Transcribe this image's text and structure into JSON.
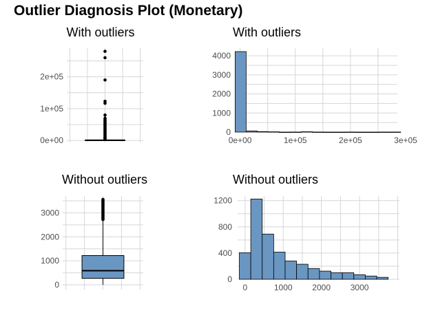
{
  "title": "Outlier Diagnosis Plot (Monetary)",
  "colors": {
    "fill": "#6a96c2",
    "stroke": "#000000",
    "grid": "#d6d6d6",
    "tick_text": "#4d4d4d"
  },
  "chart_data": [
    {
      "type": "box",
      "title": "With outliers",
      "ylim": [
        -6000,
        290000
      ],
      "yticks": [
        0,
        100000,
        200000
      ],
      "ytick_labels": [
        "0e+00",
        "1e+05",
        "2e+05"
      ],
      "grid": true,
      "box": {
        "min": 0,
        "q1": 300,
        "median": 650,
        "q3": 1650,
        "max": 3600
      },
      "outliers": [
        280000,
        260000,
        190000,
        123000,
        117000,
        80000,
        70000,
        65000,
        62000,
        58000,
        55000,
        52000,
        49000,
        46000,
        43000,
        40000,
        37000,
        34000,
        31000,
        28000,
        25000,
        22000,
        19000,
        16000,
        13000,
        10000,
        8000,
        6000,
        4500
      ]
    },
    {
      "type": "bar",
      "title": "With outliers",
      "xlim": [
        -7000,
        285000
      ],
      "ylim": [
        0,
        4400
      ],
      "xticks": [
        0,
        100000,
        200000,
        300000
      ],
      "xtick_labels": [
        "0e+00",
        "1e+05",
        "2e+05",
        "3e+05"
      ],
      "yticks": [
        0,
        1000,
        2000,
        3000,
        4000
      ],
      "ytick_labels": [
        "0",
        "1000",
        "2000",
        "3000",
        "4000"
      ],
      "grid": true,
      "bin_edges": [
        -9000,
        11000,
        31000,
        51000,
        71000,
        91000,
        111000,
        131000,
        151000,
        171000,
        191000,
        211000,
        231000,
        251000,
        271000,
        291000
      ],
      "counts": [
        4220,
        60,
        25,
        15,
        0,
        3,
        18,
        3,
        0,
        0,
        3,
        0,
        0,
        3,
        4
      ]
    },
    {
      "type": "box",
      "title": "Without outliers",
      "ylim": [
        -200,
        3700
      ],
      "yticks": [
        0,
        1000,
        2000,
        3000
      ],
      "ytick_labels": [
        "0",
        "1000",
        "2000",
        "3000"
      ],
      "grid": true,
      "box": {
        "min": 0,
        "q1": 270,
        "median": 590,
        "q3": 1220,
        "max": 2700
      },
      "outliers": [
        2720,
        2760,
        2800,
        2840,
        2880,
        2920,
        2960,
        3000,
        3040,
        3080,
        3120,
        3160,
        3200,
        3240,
        3280,
        3320,
        3360,
        3400,
        3440,
        3480,
        3520,
        3560
      ]
    },
    {
      "type": "bar",
      "title": "Without outliers",
      "xlim": [
        -195,
        4045
      ],
      "ylim": [
        0,
        1270
      ],
      "xticks": [
        0,
        1000,
        2000,
        3000
      ],
      "xtick_labels": [
        "0",
        "1000",
        "2000",
        "3000"
      ],
      "yticks": [
        0,
        400,
        800,
        1200
      ],
      "ytick_labels": [
        "0",
        "400",
        "800",
        "1200"
      ],
      "grid": true,
      "bin_edges": [
        -150,
        150,
        450,
        750,
        1050,
        1350,
        1650,
        1950,
        2250,
        2550,
        2850,
        3150,
        3450,
        3750
      ],
      "counts": [
        405,
        1225,
        690,
        415,
        280,
        230,
        165,
        125,
        100,
        100,
        70,
        50,
        30
      ]
    }
  ]
}
